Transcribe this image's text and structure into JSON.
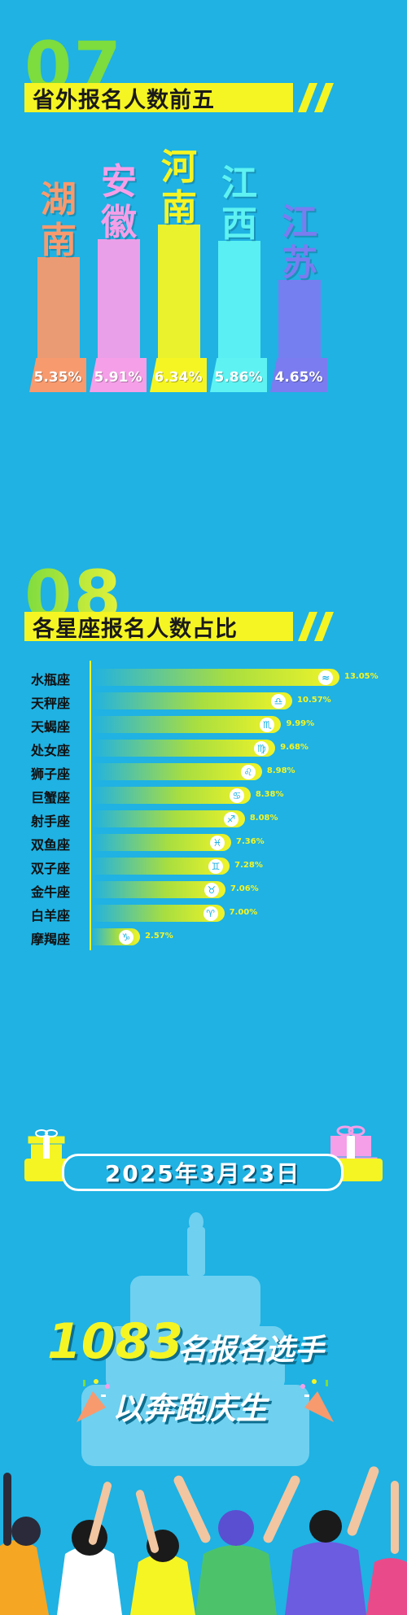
{
  "section07": {
    "number": "07",
    "title": "省外报名人数前五"
  },
  "section08": {
    "number": "08",
    "title": "各星座报名人数占比"
  },
  "colors": {
    "background": "#1fb2e3",
    "accent_yellow": "#f5f524",
    "accent_green": "#7ddc3e"
  },
  "chart_data": [
    {
      "type": "bar",
      "title": "省外报名人数前五",
      "categories": [
        "湖南",
        "安徽",
        "河南",
        "江西",
        "江苏"
      ],
      "values": [
        5.35,
        5.91,
        6.34,
        5.86,
        4.65
      ],
      "value_labels": [
        "5.35%",
        "5.91%",
        "6.34%",
        "5.86%",
        "4.65%"
      ],
      "unit": "%",
      "colors": [
        "#f79a6e",
        "#f59fe8",
        "#f5f524",
        "#5ef2f2",
        "#7b7cf0"
      ],
      "orientation": "vertical"
    },
    {
      "type": "bar",
      "title": "各星座报名人数占比",
      "categories": [
        "水瓶座",
        "天秤座",
        "天蝎座",
        "处女座",
        "狮子座",
        "巨蟹座",
        "射手座",
        "双鱼座",
        "双子座",
        "金牛座",
        "白羊座",
        "摩羯座"
      ],
      "values": [
        13.05,
        10.57,
        9.99,
        9.68,
        8.98,
        8.38,
        8.08,
        7.36,
        7.28,
        7.06,
        7.0,
        2.57
      ],
      "value_labels": [
        "13.05%",
        "10.57%",
        "9.99%",
        "9.68%",
        "8.98%",
        "8.38%",
        "8.08%",
        "7.36%",
        "7.28%",
        "7.06%",
        "7.00%",
        "2.57%"
      ],
      "symbols": [
        "≈",
        "♎",
        "♏",
        "♍",
        "♌",
        "♋",
        "♐",
        "♓",
        "♊",
        "♉",
        "♈",
        "♑"
      ],
      "unit": "%",
      "orientation": "horizontal"
    }
  ],
  "banner": {
    "date": "2025年3月23日"
  },
  "closing": {
    "count": "1083",
    "line1": "名报名选手",
    "line2": "以奔跑庆生"
  }
}
